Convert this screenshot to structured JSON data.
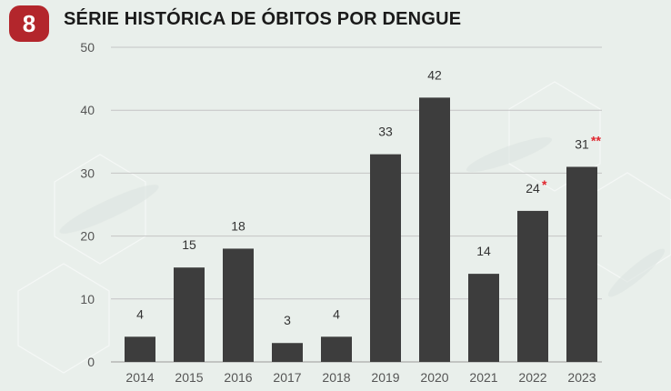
{
  "header": {
    "badge_number": "8",
    "badge_color": "#b3262c"
  },
  "chart_data": {
    "type": "bar",
    "title": "SÉRIE HISTÓRICA DE ÓBITOS POR DENGUE",
    "xlabel": "",
    "ylabel": "",
    "categories": [
      "2014",
      "2015",
      "2016",
      "2017",
      "2018",
      "2019",
      "2020",
      "2021",
      "2022",
      "2023"
    ],
    "values": [
      4,
      15,
      18,
      3,
      4,
      33,
      42,
      14,
      24,
      31
    ],
    "annotations": [
      "",
      "",
      "",
      "",
      "",
      "",
      "",
      "",
      "*",
      "**"
    ],
    "annotation_color": "#e0262e",
    "ylim": [
      0,
      50
    ],
    "yticks": [
      0,
      10,
      20,
      30,
      40,
      50
    ],
    "grid": true,
    "bar_color": "#3d3d3d"
  }
}
